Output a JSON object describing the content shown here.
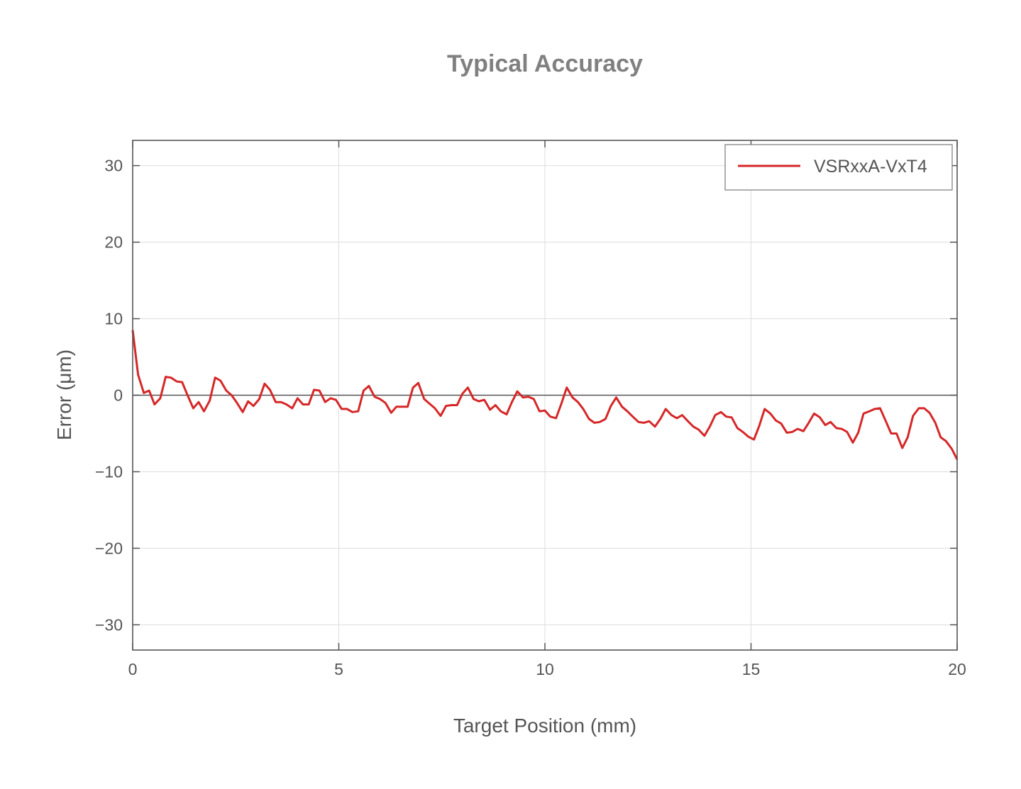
{
  "chart_data": {
    "type": "line",
    "title": "Typical Accuracy",
    "xlabel": "Target Position (mm)",
    "ylabel": "Error (μm)",
    "xlim": [
      0,
      20
    ],
    "ylim": [
      -33.3,
      33.3
    ],
    "xticks": [
      0,
      5,
      10,
      15,
      20
    ],
    "yticks": [
      -30,
      -20,
      -10,
      0,
      10,
      20,
      30
    ],
    "xtick_labels": [
      "0",
      "5",
      "10",
      "15",
      "20"
    ],
    "ytick_labels": [
      "−30",
      "−20",
      "−10",
      "0",
      "10",
      "20",
      "30"
    ],
    "grid": true,
    "legend_position": "top-right",
    "colors": {
      "line": "#d62728",
      "text": "#555555",
      "title": "#808080",
      "grid": "#dddddd",
      "axis": "#555555"
    },
    "series": [
      {
        "name": "VSRxxA-VxT4",
        "x": [
          0,
          0.13,
          0.27,
          0.4,
          0.53,
          0.67,
          0.8,
          0.93,
          1.07,
          1.2,
          1.33,
          1.47,
          1.6,
          1.73,
          1.87,
          2,
          2.13,
          2.27,
          2.4,
          2.53,
          2.67,
          2.8,
          2.93,
          3.07,
          3.2,
          3.33,
          3.47,
          3.6,
          3.73,
          3.87,
          4,
          4.13,
          4.27,
          4.4,
          4.53,
          4.67,
          4.8,
          4.93,
          5.07,
          5.2,
          5.33,
          5.47,
          5.6,
          5.73,
          5.87,
          6,
          6.13,
          6.27,
          6.4,
          6.53,
          6.67,
          6.8,
          6.93,
          7.07,
          7.2,
          7.33,
          7.47,
          7.6,
          7.73,
          7.87,
          8,
          8.13,
          8.27,
          8.4,
          8.53,
          8.67,
          8.8,
          8.93,
          9.07,
          9.2,
          9.33,
          9.47,
          9.6,
          9.73,
          9.87,
          10,
          10.13,
          10.27,
          10.4,
          10.53,
          10.67,
          10.8,
          10.93,
          11.07,
          11.2,
          11.33,
          11.47,
          11.6,
          11.73,
          11.87,
          12,
          12.13,
          12.27,
          12.4,
          12.53,
          12.67,
          12.8,
          12.93,
          13.07,
          13.2,
          13.33,
          13.47,
          13.6,
          13.73,
          13.87,
          14,
          14.13,
          14.27,
          14.4,
          14.53,
          14.67,
          14.8,
          14.93,
          15.07,
          15.2,
          15.33,
          15.47,
          15.6,
          15.73,
          15.87,
          16,
          16.13,
          16.27,
          16.4,
          16.53,
          16.67,
          16.8,
          16.93,
          17.07,
          17.2,
          17.33,
          17.47,
          17.6,
          17.73,
          17.87,
          18,
          18.13,
          18.27,
          18.4,
          18.53,
          18.67,
          18.8,
          18.93,
          19.07,
          19.2,
          19.33,
          19.47,
          19.6,
          19.73,
          19.87,
          20
        ],
        "y": [
          8.5,
          2.7,
          0.3,
          0.6,
          -1.2,
          -0.4,
          2.4,
          2.3,
          1.8,
          1.7,
          0,
          -1.7,
          -0.9,
          -2.1,
          -0.7,
          2.3,
          1.9,
          0.6,
          0,
          -1.0,
          -2.2,
          -0.8,
          -1.4,
          -0.5,
          1.5,
          0.7,
          -0.9,
          -0.9,
          -1.2,
          -1.7,
          -0.4,
          -1.2,
          -1.2,
          0.7,
          0.6,
          -0.9,
          -0.4,
          -0.6,
          -1.8,
          -1.8,
          -2.2,
          -2.1,
          0.6,
          1.2,
          -0.2,
          -0.5,
          -1.0,
          -2.3,
          -1.5,
          -1.5,
          -1.5,
          1.0,
          1.6,
          -0.5,
          -1.1,
          -1.7,
          -2.7,
          -1.4,
          -1.3,
          -1.3,
          0.2,
          1.0,
          -0.5,
          -0.8,
          -0.6,
          -1.9,
          -1.3,
          -2.1,
          -2.5,
          -0.9,
          0.5,
          -0.3,
          -0.2,
          -0.5,
          -2.1,
          -2.0,
          -2.8,
          -3.0,
          -1.1,
          1.0,
          -0.3,
          -0.9,
          -1.8,
          -3.1,
          -3.6,
          -3.5,
          -3.1,
          -1.4,
          -0.3,
          -1.5,
          -2.1,
          -2.8,
          -3.5,
          -3.6,
          -3.4,
          -4.1,
          -3.1,
          -1.8,
          -2.6,
          -3.0,
          -2.6,
          -3.4,
          -4.1,
          -4.5,
          -5.3,
          -4.1,
          -2.6,
          -2.2,
          -2.8,
          -2.9,
          -4.3,
          -4.8,
          -5.4,
          -5.8,
          -4.0,
          -1.8,
          -2.4,
          -3.3,
          -3.7,
          -4.9,
          -4.8,
          -4.4,
          -4.7,
          -3.6,
          -2.4,
          -2.9,
          -3.9,
          -3.5,
          -4.3,
          -4.4,
          -4.8,
          -6.2,
          -4.9,
          -2.4,
          -2.1,
          -1.8,
          -1.7,
          -3.4,
          -5.0,
          -5.0,
          -6.9,
          -5.5,
          -2.7,
          -1.7,
          -1.7,
          -2.3,
          -3.6,
          -5.5,
          -6.0,
          -7.0,
          -8.4
        ]
      }
    ]
  }
}
